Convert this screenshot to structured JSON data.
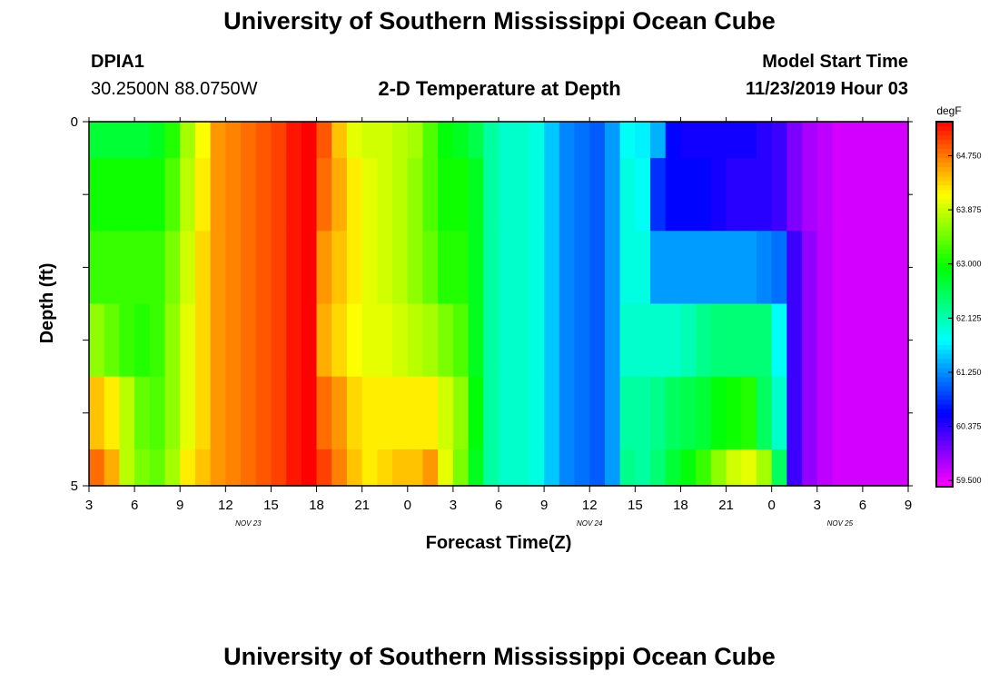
{
  "header": {
    "title": "University of Southern Mississippi Ocean Cube",
    "station_id": "DPIA1",
    "station_coords": "30.2500N 88.0750W",
    "plot_title": "2-D Temperature at Depth",
    "model_start_label": "Model Start Time",
    "model_start_value": "11/23/2019 Hour 03"
  },
  "footer": {
    "title": "University of Southern Mississippi Ocean Cube"
  },
  "chart_data": {
    "type": "heatmap",
    "title": "2-D Temperature at Depth",
    "xlabel": "Forecast Time(Z)",
    "ylabel": "Depth (ft)",
    "x_ticks": [
      "3",
      "6",
      "9",
      "12",
      "15",
      "18",
      "21",
      "0",
      "3",
      "6",
      "9",
      "12",
      "15",
      "18",
      "21",
      "0",
      "3",
      "6",
      "9"
    ],
    "date_labels": [
      {
        "text": "NOV 23",
        "at_tick": 3.5
      },
      {
        "text": "NOV 24",
        "at_tick": 11
      },
      {
        "text": "NOV 25",
        "at_tick": 16.5
      }
    ],
    "y_tick_labels": [
      {
        "value": 0,
        "label": "0"
      },
      {
        "value": 5,
        "label": "5"
      }
    ],
    "ylim": [
      0,
      5
    ],
    "hours": [
      0,
      54
    ],
    "depth_layers": [
      "0-0.5",
      "0.5-1.5",
      "1.5-2.5",
      "2.5-3.5",
      "3.5-4.5",
      "4.5-5"
    ],
    "colorbar": {
      "unit": "degF",
      "min": 59.4,
      "max": 65.3,
      "tick_labels": [
        "64.750",
        "63.875",
        "63.000",
        "62.125",
        "61.250",
        "60.375",
        "59.500"
      ],
      "tick_values": [
        64.75,
        63.875,
        63.0,
        62.125,
        61.25,
        60.375,
        59.5
      ]
    },
    "series": [
      {
        "name": "layer-1",
        "temps_degF": [
          62.7,
          62.7,
          62.7,
          62.7,
          62.8,
          63.1,
          63.7,
          64.1,
          64.6,
          64.7,
          64.8,
          64.9,
          65.0,
          65.2,
          65.3,
          64.9,
          64.4,
          64.0,
          63.9,
          63.9,
          63.8,
          63.7,
          63.3,
          62.9,
          62.8,
          62.6,
          62.2,
          62.0,
          62.0,
          61.9,
          61.5,
          61.2,
          61.1,
          61.0,
          61.3,
          61.8,
          61.7,
          61.4,
          60.6,
          60.5,
          60.5,
          60.5,
          60.5,
          60.5,
          60.4,
          60.3,
          60.0,
          59.8,
          59.7,
          59.6,
          59.6,
          59.6,
          59.6,
          59.6
        ]
      },
      {
        "name": "layer-2",
        "temps_degF": [
          63.0,
          63.0,
          63.0,
          63.0,
          63.0,
          63.3,
          63.8,
          64.2,
          64.6,
          64.7,
          64.8,
          64.9,
          65.0,
          65.2,
          65.3,
          64.8,
          64.5,
          64.2,
          64.0,
          63.9,
          63.8,
          63.6,
          63.3,
          63.0,
          63.0,
          62.8,
          62.2,
          62.0,
          62.0,
          61.9,
          61.5,
          61.2,
          61.1,
          61.0,
          61.3,
          61.9,
          61.8,
          60.8,
          60.6,
          60.6,
          60.6,
          60.5,
          60.4,
          60.4,
          60.4,
          60.3,
          60.0,
          59.8,
          59.7,
          59.6,
          59.6,
          59.6,
          59.6,
          59.6
        ]
      },
      {
        "name": "layer-3",
        "temps_degF": [
          63.2,
          63.2,
          63.2,
          63.2,
          63.2,
          63.5,
          63.9,
          64.3,
          64.6,
          64.7,
          64.8,
          64.9,
          65.0,
          65.2,
          65.3,
          64.6,
          64.4,
          64.2,
          64.0,
          63.9,
          63.8,
          63.6,
          63.4,
          63.1,
          63.1,
          62.8,
          62.2,
          62.0,
          62.0,
          61.9,
          61.5,
          61.2,
          61.1,
          61.0,
          61.3,
          61.9,
          61.9,
          61.3,
          61.3,
          61.3,
          61.3,
          61.3,
          61.3,
          61.3,
          61.2,
          61.1,
          60.3,
          59.9,
          59.7,
          59.6,
          59.6,
          59.6,
          59.6,
          59.6
        ]
      },
      {
        "name": "layer-4",
        "temps_degF": [
          63.6,
          63.4,
          63.2,
          63.1,
          63.2,
          63.6,
          64.0,
          64.3,
          64.6,
          64.7,
          64.8,
          64.9,
          65.0,
          65.2,
          65.3,
          64.5,
          64.3,
          64.1,
          64.0,
          64.0,
          63.9,
          63.8,
          63.7,
          63.5,
          63.3,
          62.8,
          62.2,
          62.0,
          62.0,
          61.9,
          61.5,
          61.2,
          61.1,
          61.0,
          61.3,
          62.0,
          62.0,
          62.0,
          62.0,
          62.1,
          62.3,
          62.4,
          62.4,
          62.4,
          62.4,
          61.8,
          60.3,
          59.9,
          59.7,
          59.6,
          59.6,
          59.6,
          59.6,
          59.6
        ]
      },
      {
        "name": "layer-5",
        "temps_degF": [
          64.4,
          64.2,
          63.8,
          63.4,
          63.3,
          63.6,
          64.0,
          64.3,
          64.6,
          64.7,
          64.8,
          64.9,
          65.0,
          65.2,
          65.3,
          64.8,
          64.6,
          64.3,
          64.2,
          64.2,
          64.2,
          64.2,
          64.2,
          63.9,
          63.6,
          62.9,
          62.2,
          62.0,
          62.0,
          61.9,
          61.5,
          61.2,
          61.1,
          61.0,
          61.3,
          62.2,
          62.2,
          62.3,
          62.5,
          62.6,
          62.7,
          62.9,
          63.0,
          63.1,
          62.5,
          62.0,
          60.3,
          59.9,
          59.7,
          59.6,
          59.6,
          59.6,
          59.6,
          59.6
        ]
      },
      {
        "name": "layer-6",
        "temps_degF": [
          64.8,
          64.5,
          63.8,
          63.5,
          63.4,
          63.7,
          64.2,
          64.4,
          64.6,
          64.7,
          64.8,
          64.9,
          65.0,
          65.2,
          65.3,
          65.0,
          64.7,
          64.4,
          64.2,
          64.3,
          64.4,
          64.4,
          64.6,
          64.0,
          63.5,
          62.8,
          62.2,
          62.0,
          62.0,
          61.9,
          61.5,
          61.2,
          61.1,
          61.0,
          61.3,
          62.3,
          62.2,
          62.4,
          62.7,
          62.9,
          63.2,
          63.6,
          63.9,
          64.0,
          63.7,
          62.5,
          60.3,
          59.9,
          59.7,
          59.6,
          59.6,
          59.6,
          59.6,
          59.6
        ]
      }
    ]
  }
}
